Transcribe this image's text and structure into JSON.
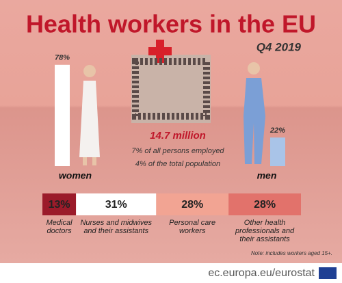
{
  "chart_data": [
    {
      "type": "bar",
      "title": "Health workers in the EU",
      "subtitle": "Q4 2019",
      "annotations": [
        "14.7 million",
        "7% of all persons employed",
        "4% of the total population"
      ],
      "categories": [
        "women",
        "men"
      ],
      "values": [
        78,
        22
      ],
      "value_labels": [
        "78%",
        "22%"
      ],
      "colors": [
        "#ffffff",
        "#a9c4e8"
      ]
    },
    {
      "type": "stacked-bar",
      "categories": [
        "Medical doctors",
        "Nurses and midwives and their assistants",
        "Personal care workers",
        "Other health professionals and their assistants"
      ],
      "values": [
        13,
        31,
        28,
        28
      ],
      "value_labels": [
        "13%",
        "31%",
        "28%",
        "28%"
      ],
      "colors": [
        "#9b1b2a",
        "#ffffff",
        "#f2a493",
        "#e2726b"
      ],
      "note": "Note: includes workers aged 15+.",
      "source": "ec.europa.eu/eurostat"
    }
  ]
}
